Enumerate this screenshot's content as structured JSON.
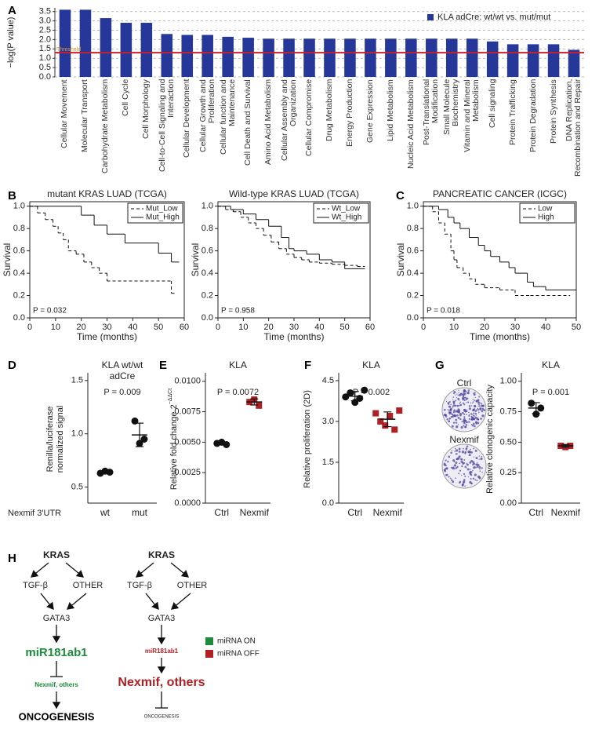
{
  "chart_data": [
    {
      "type": "bar",
      "panel": "A",
      "ylabel": "−log(P value)",
      "categories": [
        "Cellular Movement",
        "Molecular Transport",
        "Carbohydrate Metabolism",
        "Cell Cycle",
        "Cell Morphology",
        "Cell-to-Cell Signaling and Interaction",
        "Cellular Development",
        "Cellular Growth and Proliferation",
        "Cellular function and Maintenance",
        "Cell Death and Survival",
        "Amino Acid Metabolism",
        "Cellular Assembly and Organization",
        "Cellular Compromise",
        "Drug Metabolism",
        "Energy Production",
        "Gene Expression",
        "Lipid Metabolism",
        "Nucleic Acid Metabolism",
        "Post-Translational Modification",
        "Small Molecule Biochemistry",
        "Vitamin and Mineral Metabolism",
        "Cell signaling",
        "Protein Trafficking",
        "Protein Degradation",
        "Protein Synthesis",
        "DNA Replication, Recombination and Repair"
      ],
      "series": [
        {
          "name": "KLA adCre: wt/wt vs. mut/mut",
          "color": "#25389a",
          "values": [
            3.6,
            3.6,
            3.15,
            2.9,
            2.9,
            2.3,
            2.25,
            2.25,
            2.15,
            2.1,
            2.05,
            2.05,
            2.05,
            2.05,
            2.05,
            2.05,
            2.05,
            2.05,
            2.05,
            2.05,
            2.05,
            1.9,
            1.75,
            1.75,
            1.75,
            1.45
          ]
        }
      ],
      "threshold": {
        "value": 1.3,
        "label": "Threshold"
      },
      "ylim": [
        0,
        3.7
      ],
      "yticks": [
        {
          "value": 0,
          "label": "0.0"
        },
        0.5,
        {
          "value": 1,
          "label": "1.0"
        },
        1.5,
        {
          "value": 2,
          "label": "2.0"
        },
        2.5,
        {
          "value": 3,
          "label": "3.0"
        },
        3.5
      ],
      "grid": true
    },
    {
      "type": "step",
      "panel": "B",
      "title": "mutant KRAS LUAD (TCGA)",
      "xlabel": "Time (months)",
      "ylabel": "Survival",
      "annotation": "P = 0.032",
      "series": [
        {
          "name": "Mut_Low",
          "line_style": "dashed",
          "x": [
            0,
            3,
            6,
            9,
            11,
            13,
            15,
            18,
            21,
            24,
            27,
            30,
            55,
            57
          ],
          "values": [
            1.0,
            0.94,
            0.88,
            0.82,
            0.76,
            0.7,
            0.6,
            0.57,
            0.5,
            0.45,
            0.4,
            0.33,
            0.22,
            0.22
          ]
        },
        {
          "name": "Mut_High",
          "line_style": "solid",
          "x": [
            0,
            20,
            25,
            30,
            37,
            50,
            55,
            58
          ],
          "values": [
            1.0,
            0.92,
            0.83,
            0.75,
            0.67,
            0.58,
            0.5,
            0.5
          ]
        }
      ],
      "xlim": [
        0,
        60
      ],
      "xticks": [
        0,
        10,
        20,
        30,
        40,
        50,
        60
      ],
      "ylim": [
        0,
        1.04
      ],
      "yticks": [
        {
          "value": 0,
          "label": "0.0"
        },
        0.2,
        0.4,
        0.6,
        0.8,
        {
          "value": 1,
          "label": "1.0"
        }
      ]
    },
    {
      "type": "step",
      "title": "Wild-type KRAS LUAD (TCGA)",
      "xlabel": "Time (months)",
      "ylabel": "Survival",
      "annotation": "P = 0.958",
      "series": [
        {
          "name": "Wt_Low",
          "line_style": "dashed",
          "x": [
            0,
            3,
            6,
            9,
            12,
            15,
            18,
            21,
            24,
            27,
            30,
            33,
            36,
            40,
            45,
            50,
            55,
            58
          ],
          "values": [
            1.0,
            0.97,
            0.95,
            0.9,
            0.85,
            0.8,
            0.74,
            0.68,
            0.62,
            0.57,
            0.54,
            0.52,
            0.5,
            0.49,
            0.48,
            0.47,
            0.46,
            0.46
          ]
        },
        {
          "name": "Wt_High",
          "line_style": "solid",
          "x": [
            0,
            5,
            10,
            15,
            20,
            25,
            28,
            30,
            35,
            40,
            45,
            50,
            52,
            58
          ],
          "values": [
            1.0,
            0.97,
            0.93,
            0.88,
            0.82,
            0.72,
            0.62,
            0.6,
            0.57,
            0.52,
            0.5,
            0.44,
            0.44,
            0.44
          ]
        }
      ],
      "xlim": [
        0,
        60
      ],
      "xticks": [
        0,
        10,
        20,
        30,
        40,
        50,
        60
      ],
      "ylim": [
        0,
        1.04
      ],
      "yticks": [
        {
          "value": 0,
          "label": "0.0"
        },
        0.2,
        0.4,
        0.6,
        0.8,
        {
          "value": 1,
          "label": "1.0"
        }
      ]
    },
    {
      "type": "step",
      "panel": "C",
      "title": "PANCREATIC CANCER (ICGC)",
      "xlabel": "Time (months)",
      "ylabel": "Survival",
      "annotation": "P = 0.018",
      "series": [
        {
          "name": "Low",
          "line_style": "dashed",
          "x": [
            0,
            3,
            5,
            7,
            9,
            10,
            11,
            13,
            15,
            17,
            20,
            25,
            30,
            35,
            48
          ],
          "values": [
            1.0,
            0.95,
            0.85,
            0.75,
            0.6,
            0.52,
            0.45,
            0.4,
            0.35,
            0.3,
            0.27,
            0.25,
            0.2,
            0.2,
            0.2
          ]
        },
        {
          "name": "High",
          "line_style": "solid",
          "x": [
            0,
            5,
            8,
            10,
            12,
            15,
            18,
            20,
            22,
            25,
            28,
            30,
            34,
            36,
            40,
            45,
            50
          ],
          "values": [
            1.0,
            0.97,
            0.9,
            0.85,
            0.8,
            0.72,
            0.65,
            0.6,
            0.55,
            0.5,
            0.45,
            0.4,
            0.32,
            0.28,
            0.25,
            0.25,
            0.25
          ]
        }
      ],
      "xlim": [
        0,
        50
      ],
      "xticks": [
        0,
        10,
        20,
        30,
        40,
        50
      ],
      "ylim": [
        0,
        1.04
      ],
      "yticks": [
        {
          "value": 0,
          "label": "0.0"
        },
        0.2,
        0.4,
        0.6,
        0.8,
        {
          "value": 1,
          "label": "1.0"
        }
      ]
    },
    {
      "type": "strip",
      "panel": "D",
      "title": [
        "KLA wt/wt",
        "adCre"
      ],
      "ylabel": [
        "Renilla/luciferase",
        "normalized signal"
      ],
      "xlabel": "Nexmif 3′UTR",
      "annotation": "P = 0.009",
      "categories": [
        "wt",
        "mut"
      ],
      "colors": [
        "#111111",
        "#111111"
      ],
      "markers": [
        "circle",
        "circle"
      ],
      "points": [
        [
          0.63,
          0.65,
          0.64
        ],
        [
          1.12,
          0.91,
          0.95
        ]
      ],
      "mean": [
        0.64,
        0.99
      ],
      "sd": [
        0.01,
        0.11
      ],
      "ylim": [
        0.35,
        1.55
      ],
      "yticks": [
        0.5,
        {
          "value": 1,
          "label": "1.0"
        },
        1.5
      ]
    },
    {
      "type": "strip",
      "panel": "E",
      "title": [
        "KLA"
      ],
      "ylabel": "Relative fold change 2",
      "ylabel_sup": "−ΔΔCt",
      "annotation": "P = 0.0072",
      "categories": [
        "Ctrl",
        "Nexmif"
      ],
      "colors": [
        "#111111",
        "#b01f24"
      ],
      "markers": [
        "circle",
        "square"
      ],
      "points": [
        [
          0.0049,
          0.005,
          0.0048
        ],
        [
          0.0083,
          0.0085,
          0.008
        ]
      ],
      "mean": [
        0.0049,
        0.0083
      ],
      "sd": [
        0.0001,
        0.00025
      ],
      "ylim": [
        0,
        0.0105
      ],
      "yticks": [
        {
          "value": 0,
          "label": "0.0000"
        },
        {
          "value": 0.0025,
          "label": "0.0025"
        },
        {
          "value": 0.005,
          "label": "0.0050"
        },
        {
          "value": 0.0075,
          "label": "0.0075"
        },
        {
          "value": 0.01,
          "label": "0.0100"
        }
      ]
    },
    {
      "type": "strip",
      "panel": "F",
      "title": [
        "KLA"
      ],
      "ylabel": "Relative proliferation (2D)",
      "annotation": "P = 0.002",
      "categories": [
        "Ctrl",
        "Nexmif"
      ],
      "colors": [
        "#111111",
        "#b01f24"
      ],
      "markers": [
        "circle",
        "square"
      ],
      "points": [
        [
          3.9,
          4.05,
          3.7,
          3.85,
          4.15
        ],
        [
          3.3,
          3.0,
          2.85,
          3.2,
          2.7,
          3.4
        ]
      ],
      "mean": [
        3.93,
        3.08
      ],
      "sd": [
        0.17,
        0.27
      ],
      "ylim": [
        0,
        4.7
      ],
      "yticks": [
        {
          "value": 0,
          "label": "0.0"
        },
        1.5,
        {
          "value": 3,
          "label": "3.0"
        },
        4.5
      ]
    },
    {
      "type": "strip",
      "panel": "G",
      "title": [
        "KLA"
      ],
      "ylabel": "Relative clonogenic capacity",
      "annotation": "P = 0.001",
      "image_labels": [
        "Ctrl",
        "Nexmif"
      ],
      "categories": [
        "Ctrl",
        "Nexmif"
      ],
      "colors": [
        "#111111",
        "#b01f24"
      ],
      "markers": [
        "circle",
        "square"
      ],
      "points": [
        [
          0.82,
          0.73,
          0.78
        ],
        [
          0.47,
          0.46,
          0.47
        ]
      ],
      "mean": [
        0.78,
        0.47
      ],
      "sd": [
        0.045,
        0.01
      ],
      "ylim": [
        0,
        1.05
      ],
      "yticks": [
        {
          "value": 0,
          "label": "0.00"
        },
        {
          "value": 0.25,
          "label": "0.25"
        },
        {
          "value": 0.5,
          "label": "0.50"
        },
        {
          "value": 0.75,
          "label": "0.75"
        },
        {
          "value": 1,
          "label": "1.00"
        }
      ]
    }
  ],
  "diagram": {
    "panel": "H",
    "nodes": [
      "KRAS",
      "TGF-β",
      "OTHER",
      "GATA3",
      "miR181ab1",
      "Nexmif, others",
      "ONCOGENESIS",
      "KRAS",
      "TGF-β",
      "OTHER",
      "GATA3",
      "miR181ab1",
      "Nexmif, others",
      "ONCOGENESIS"
    ],
    "legend": [
      "miRNA ON",
      "miRNA OFF"
    ]
  }
}
